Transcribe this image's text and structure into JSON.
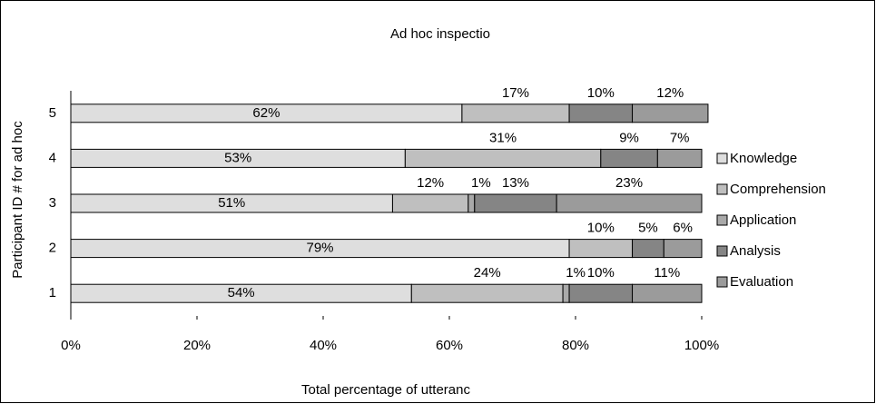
{
  "chart_data": {
    "type": "stacked-bar-horizontal",
    "title": "Ad hoc inspectio",
    "x_label": "Total percentage of utteranc",
    "y_label": "Participant ID # for ad hoc",
    "categories": [
      "1",
      "2",
      "3",
      "4",
      "5"
    ],
    "series": [
      {
        "name": "Knowledge",
        "color": "#dedede",
        "values": [
          54,
          79,
          51,
          53,
          62
        ],
        "value_labels": [
          "54%",
          "79%",
          "51%",
          "53%",
          "62%"
        ]
      },
      {
        "name": "Comprehension",
        "color": "#bfbfbf",
        "values": [
          24,
          10,
          12,
          31,
          17
        ],
        "value_labels": [
          "24%",
          "10%",
          "12%",
          "31%",
          "17%"
        ]
      },
      {
        "name": "Application",
        "color": "#a9a9a9",
        "values": [
          1,
          0,
          1,
          0,
          0
        ],
        "value_labels": [
          "1%",
          null,
          "1%",
          null,
          null
        ]
      },
      {
        "name": "Analysis",
        "color": "#858585",
        "values": [
          10,
          5,
          13,
          9,
          10
        ],
        "value_labels": [
          "10%",
          "5%",
          "13%",
          "9%",
          "10%"
        ]
      },
      {
        "name": "Evaluation",
        "color": "#9b9b9b",
        "values": [
          11,
          6,
          23,
          7,
          12
        ],
        "value_labels": [
          "11%",
          "6%",
          "23%",
          "7%",
          "12%"
        ]
      }
    ],
    "xlim": [
      0,
      100
    ],
    "xticks": [
      {
        "value": 0,
        "label": "0%"
      },
      {
        "value": 20,
        "label": "20%"
      },
      {
        "value": 40,
        "label": "40%"
      },
      {
        "value": 60,
        "label": "60%"
      },
      {
        "value": 80,
        "label": "80%"
      },
      {
        "value": 100,
        "label": "100%"
      }
    ],
    "legend": "right"
  }
}
